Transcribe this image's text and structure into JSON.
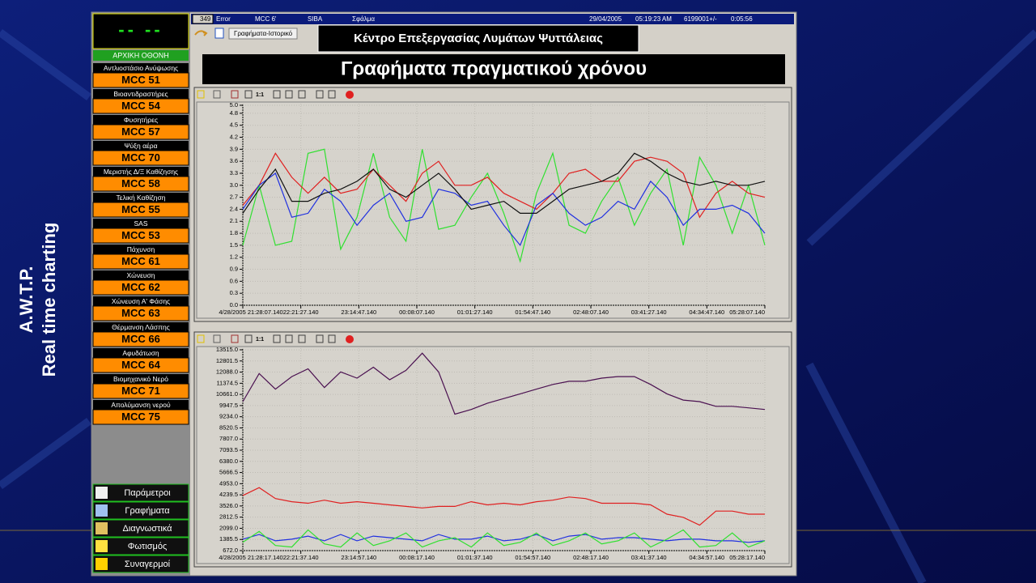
{
  "side_title": [
    "A.W.T.P.",
    "Real time charting"
  ],
  "display": "-- --",
  "home": "ΑΡΧΙΚΗ ΟΘΟΝΗ",
  "menu": [
    {
      "label": "Αντλιοστάσιο Ανύψωσης",
      "mcc": "MCC 51"
    },
    {
      "label": "Βιοαντιδραστήρες",
      "mcc": "MCC 54"
    },
    {
      "label": "Φυσητήρες",
      "mcc": "MCC 57"
    },
    {
      "label": "Ψύξη αέρα",
      "mcc": "MCC 70"
    },
    {
      "label": "Μεριστής Δ/Ξ Καθίζησης",
      "mcc": "MCC 58"
    },
    {
      "label": "Τελική Καθίζηση",
      "mcc": "MCC 55"
    },
    {
      "label": "SAS",
      "mcc": "MCC 53"
    },
    {
      "label": "Πάχυνση",
      "mcc": "MCC 61"
    },
    {
      "label": "Χώνευση",
      "mcc": "MCC 62"
    },
    {
      "label": "Χώνευση Α' Φάσης",
      "mcc": "MCC 63"
    },
    {
      "label": "Θέρμανση Λάσπης",
      "mcc": "MCC 66"
    },
    {
      "label": "Αφυδάτωση",
      "mcc": "MCC 64"
    },
    {
      "label": "Βιομηχανικό Νερό",
      "mcc": "MCC 71"
    },
    {
      "label": "Απολύμανση νερού",
      "mcc": "MCC 75"
    }
  ],
  "buttons": [
    "Παράμετροι",
    "Γραφήματα",
    "Διαγνωστικά",
    "Φωτισμός",
    "Συναγερμοί"
  ],
  "status_bar": [
    "349",
    "Error",
    "MCC 6'",
    "SIBA",
    "Σφάλμα",
    "29/04/2005",
    "05:19:23 AM",
    "6199001+/-",
    "0:05:56"
  ],
  "history_tab": "Γραφήματα-Ιστορικό",
  "plant_title": "Κέντρο Επεξεργασίας Λυμάτων Ψυττάλειας",
  "page_title": "Γραφήματα πραγματικού χρόνου",
  "toolbar_zoom": "1:1",
  "chart_data": [
    {
      "type": "line",
      "ylim": [
        0,
        5
      ],
      "yticks": [
        {
          "value": 0,
          "label": "0.0"
        },
        0.3,
        0.6,
        0.9,
        1.2,
        1.5,
        1.8,
        2.1,
        2.4,
        2.7,
        {
          "value": 3,
          "label": "3.0"
        },
        3.3,
        3.6,
        3.9,
        4.2,
        4.5,
        4.8,
        {
          "value": 5,
          "label": "5.0"
        }
      ],
      "xtick_labels": [
        "4/28/2005 21:28:07.140",
        "22:21:27.140",
        "23:14:47.140",
        "00:08:07.140",
        "01:01:27.140",
        "01:54:47.140",
        "02:48:07.140",
        "03:41:27.140",
        "04:34:47.140",
        "05:28:07.140"
      ],
      "series": [
        {
          "color": "#30e030",
          "values": [
            1.5,
            3.0,
            1.5,
            1.6,
            3.8,
            3.9,
            1.4,
            2.2,
            3.8,
            2.2,
            1.6,
            3.9,
            1.9,
            2.0,
            2.7,
            3.3,
            2.3,
            1.1,
            2.8,
            3.8,
            2.0,
            1.8,
            2.6,
            3.2,
            2.0,
            2.8,
            3.4,
            1.5,
            3.7,
            3.0,
            1.8,
            3.0,
            1.5
          ]
        },
        {
          "color": "#e02020",
          "values": [
            2.5,
            3.0,
            3.8,
            3.2,
            2.8,
            3.2,
            2.8,
            2.9,
            3.4,
            3.0,
            2.6,
            3.3,
            3.6,
            3.0,
            3.0,
            3.2,
            2.8,
            2.6,
            2.4,
            2.8,
            3.3,
            3.4,
            3.1,
            3.1,
            3.6,
            3.7,
            3.6,
            3.3,
            2.2,
            2.8,
            3.1,
            2.8,
            2.7
          ]
        },
        {
          "color": "#2030e0",
          "values": [
            2.4,
            3.0,
            3.3,
            2.2,
            2.3,
            2.9,
            2.6,
            2.0,
            2.5,
            2.8,
            2.1,
            2.2,
            2.9,
            2.8,
            2.5,
            2.6,
            2.0,
            1.5,
            2.5,
            2.8,
            2.3,
            2.0,
            2.2,
            2.6,
            2.4,
            3.1,
            2.7,
            2.0,
            2.4,
            2.4,
            2.5,
            2.3,
            1.8
          ]
        },
        {
          "color": "#101010",
          "values": [
            2.3,
            2.9,
            3.4,
            2.6,
            2.6,
            2.8,
            2.9,
            3.1,
            3.4,
            2.9,
            2.7,
            3.0,
            3.3,
            2.9,
            2.4,
            2.5,
            2.6,
            2.3,
            2.3,
            2.6,
            2.9,
            3.0,
            3.1,
            3.3,
            3.8,
            3.6,
            3.3,
            3.1,
            3.0,
            3.1,
            3.0,
            3.0,
            3.1
          ]
        }
      ],
      "grid": true
    },
    {
      "type": "line",
      "ylim": [
        672,
        13515
      ],
      "yticks": [
        {
          "value": 672,
          "label": "672.0"
        },
        1385.5,
        {
          "value": 2099,
          "label": "2099.0"
        },
        2812.5,
        {
          "value": 3526,
          "label": "3526.0"
        },
        4239.5,
        {
          "value": 4953,
          "label": "4953.0"
        },
        5666.5,
        {
          "value": 6380,
          "label": "6380.0"
        },
        7093.5,
        {
          "value": 7807,
          "label": "7807.0"
        },
        8520.5,
        {
          "value": 9234,
          "label": "9234.0"
        },
        9947.5,
        {
          "value": 10661,
          "label": "10661.0"
        },
        11374.5,
        {
          "value": 12088,
          "label": "12088.0"
        },
        12801.5,
        {
          "value": 13515,
          "label": "13515.0"
        }
      ],
      "xtick_labels": [
        "4/28/2005 21:28:17.140",
        "22:21:37.140",
        "23:14:57.140",
        "00:08:17.140",
        "01:01:37.140",
        "01:54:57.140",
        "02:48:17.140",
        "03:41:37.140",
        "04:34:57.140",
        "05:28:17.140"
      ],
      "series": [
        {
          "color": "#4a1050",
          "values": [
            10200,
            12000,
            11000,
            11800,
            12300,
            11100,
            12100,
            11700,
            12400,
            11600,
            12200,
            13300,
            12100,
            9400,
            9700,
            10100,
            10400,
            10700,
            11000,
            11300,
            11500,
            11500,
            11700,
            11800,
            11800,
            11300,
            10700,
            10300,
            10200,
            9900,
            9900,
            9800,
            9700
          ]
        },
        {
          "color": "#e02020",
          "values": [
            4200,
            4700,
            4000,
            3800,
            3700,
            3900,
            3700,
            3800,
            3700,
            3600,
            3500,
            3400,
            3500,
            3500,
            3800,
            3600,
            3700,
            3600,
            3800,
            3900,
            4100,
            4000,
            3700,
            3700,
            3700,
            3600,
            3000,
            2800,
            2300,
            3200,
            3200,
            3000,
            3000
          ]
        },
        {
          "color": "#2030e0",
          "values": [
            1400,
            1700,
            1300,
            1400,
            1600,
            1300,
            1700,
            1300,
            1600,
            1500,
            1400,
            1300,
            1700,
            1400,
            1400,
            1600,
            1300,
            1400,
            1700,
            1300,
            1600,
            1700,
            1400,
            1500,
            1500,
            1400,
            1300,
            1400,
            1400,
            1300,
            1300,
            1200,
            1300
          ]
        },
        {
          "color": "#30e030",
          "values": [
            1200,
            1900,
            1000,
            900,
            2000,
            1100,
            900,
            1800,
            1000,
            1300,
            1800,
            900,
            1300,
            1500,
            900,
            1800,
            1000,
            1200,
            1800,
            1000,
            1300,
            1800,
            1100,
            1300,
            1800,
            900,
            1400,
            2000,
            900,
            1000,
            1800,
            900,
            1300
          ]
        }
      ],
      "grid": true
    }
  ]
}
